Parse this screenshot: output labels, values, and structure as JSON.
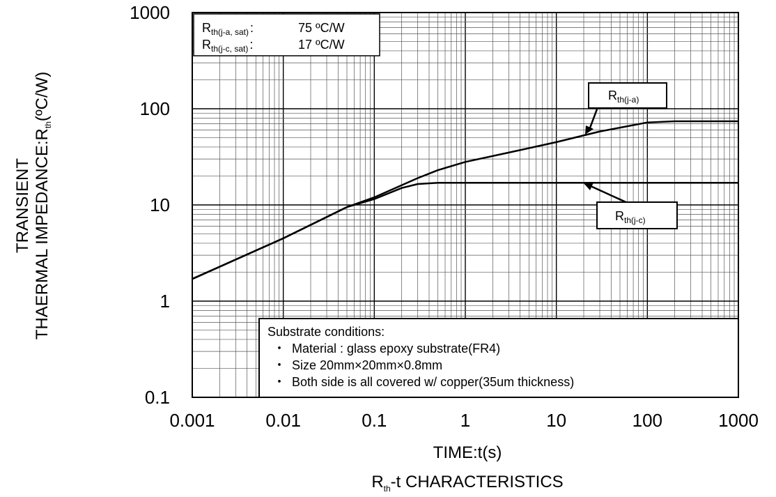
{
  "chart_data": {
    "type": "line",
    "title": "R",
    "title_subscript": "th",
    "title_suffix": "-t CHARACTERISTICS",
    "xlabel": "TIME:t(s)",
    "ylabel_line1": "TRANSIENT",
    "ylabel_line2_main": "THAERMAL IMPEDANCE:R",
    "ylabel_line2_sub": "th",
    "ylabel_line2_unit": "(ºC/W)",
    "x_scale": "log",
    "y_scale": "log",
    "xlim": [
      0.001,
      1000
    ],
    "ylim": [
      0.1,
      1000
    ],
    "grid": true,
    "x_ticks": [
      "0.001",
      "0.01",
      "0.1",
      "1",
      "10",
      "100",
      "1000"
    ],
    "y_ticks": [
      "1000",
      "100",
      "10",
      "1",
      "0.1"
    ],
    "series": [
      {
        "name": "th(j-a)",
        "x": [
          0.001,
          0.01,
          0.05,
          0.1,
          0.3,
          0.5,
          1,
          3,
          10,
          30,
          100,
          200,
          1000
        ],
        "y": [
          1.7,
          4.5,
          9.5,
          12,
          19,
          23,
          28,
          35,
          45,
          58,
          72,
          74,
          74
        ]
      },
      {
        "name": "th(j-c)",
        "x": [
          0.001,
          0.01,
          0.05,
          0.1,
          0.2,
          0.3,
          0.5,
          1,
          10,
          100,
          1000
        ],
        "y": [
          1.7,
          4.5,
          9.5,
          11.5,
          15,
          16.5,
          17,
          17,
          17,
          17,
          17
        ]
      }
    ],
    "rth_box": {
      "line1_main": "R",
      "line1_sub": "th(j-a, sat)",
      "line1_colon": ":",
      "line1_value": "75 ºC/W",
      "line2_main": "R",
      "line2_sub": "th(j-c, sat)",
      "line2_colon": ":",
      "line2_value": "17 ºC/W"
    },
    "callouts": [
      {
        "main": "R",
        "sub": "th(j-a)"
      },
      {
        "main": "R",
        "sub": "th(j-c)"
      }
    ],
    "substrate": {
      "heading": "Substrate conditions:",
      "bullet": "・",
      "items": [
        "Material : glass epoxy substrate(FR4)",
        "Size 20mm×20mm×0.8mm",
        "Both side is all covered w/ copper(35um thickness)"
      ]
    }
  }
}
